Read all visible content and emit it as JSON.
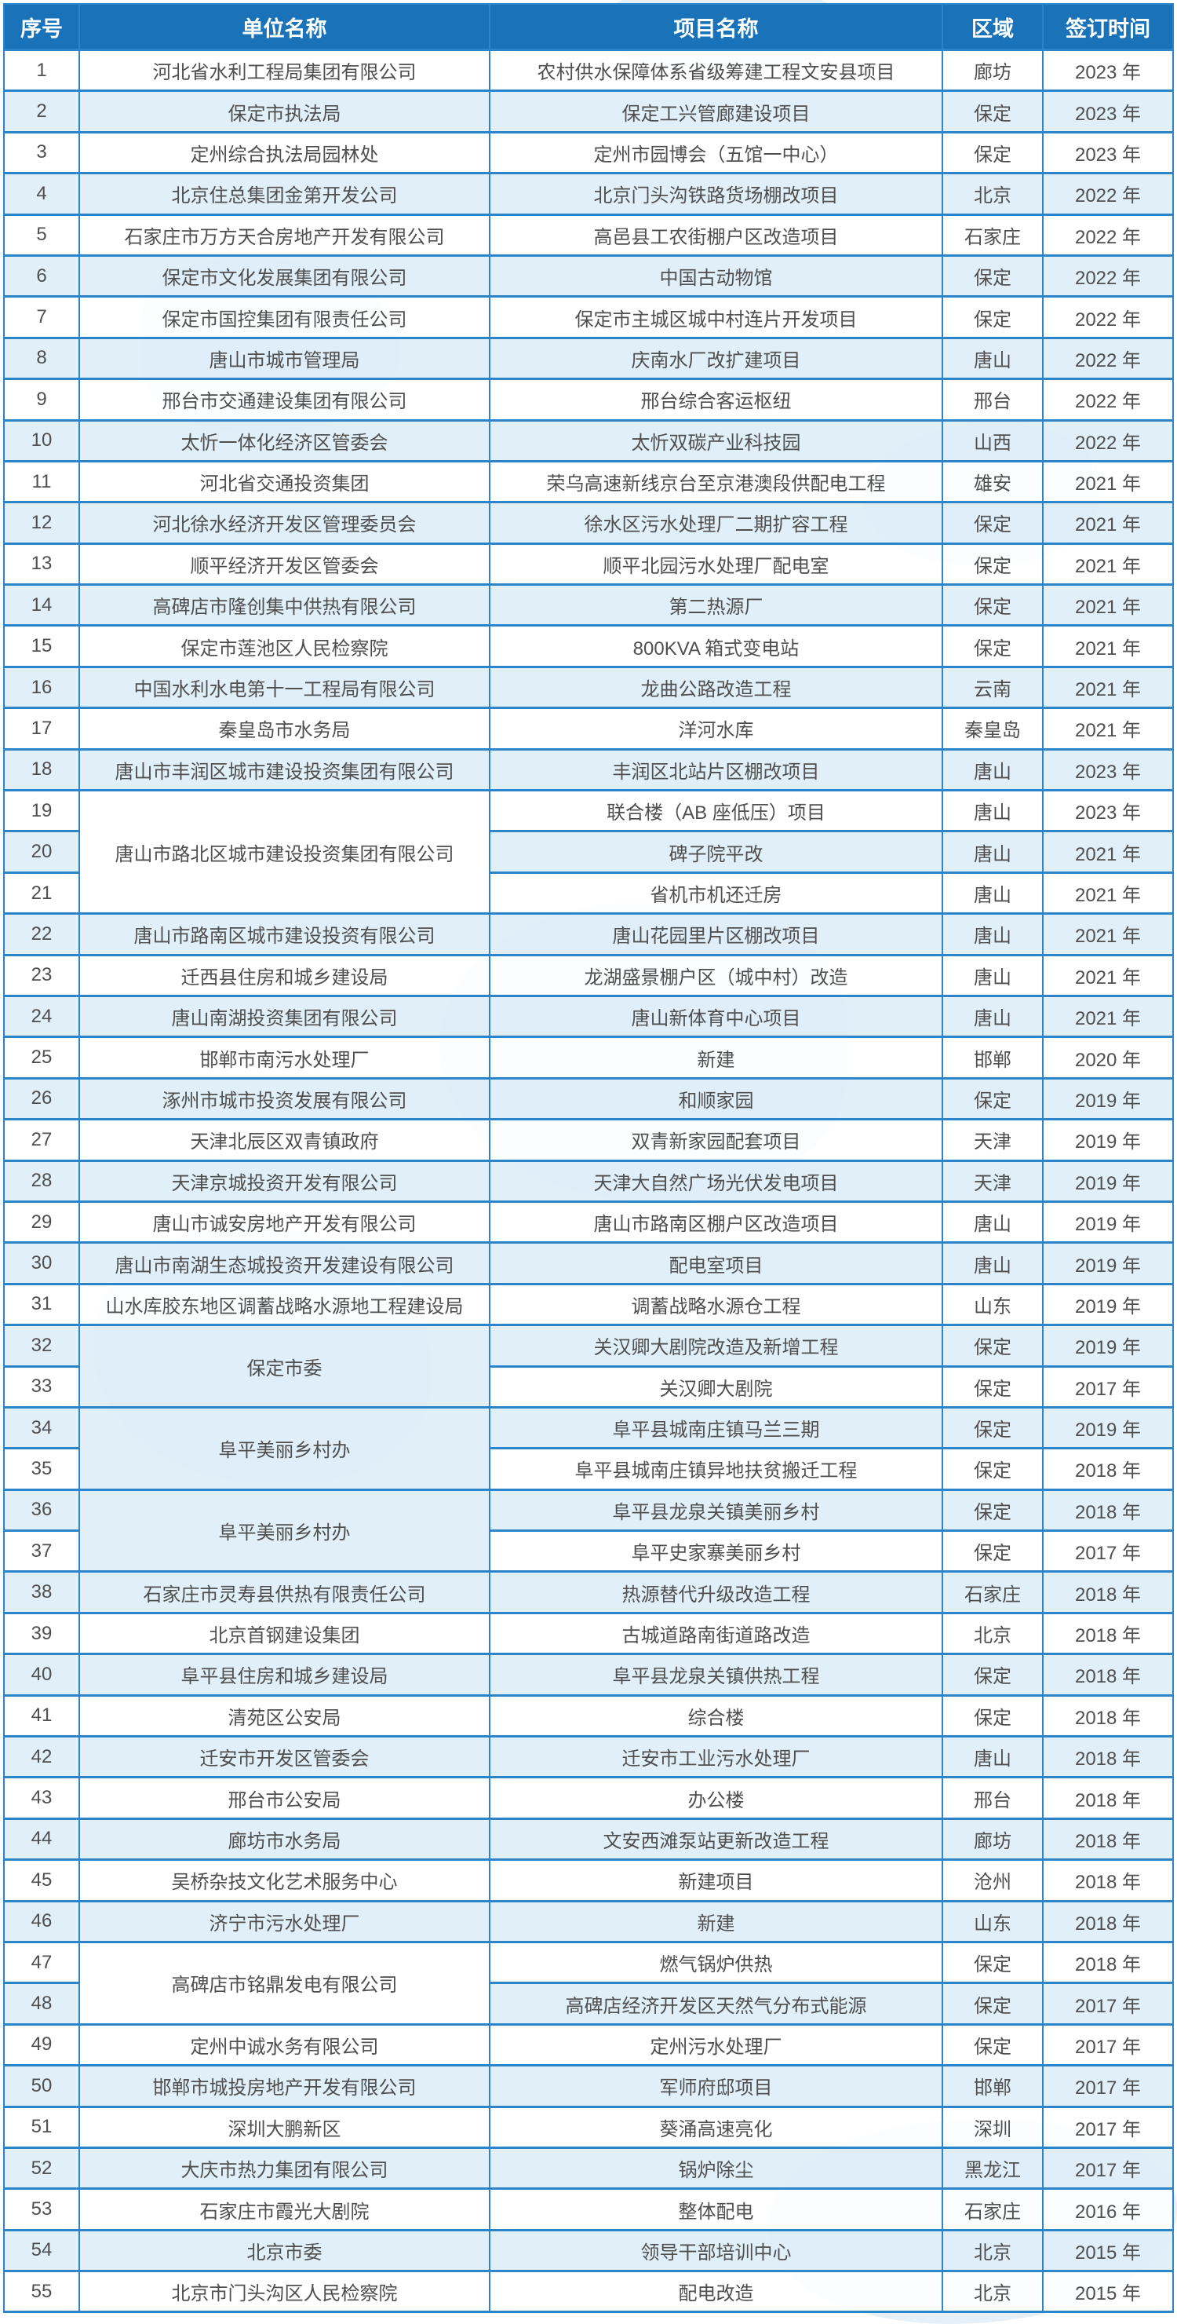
{
  "colors": {
    "header_bg": "#1a73b8",
    "header_text": "#ffffff",
    "border": "#2b85c8",
    "row_alt": "#deeef9",
    "body_text": "#4f4f4f",
    "watermark": "#cfe4f4"
  },
  "table": {
    "columns": [
      {
        "key": "no",
        "label": "序号"
      },
      {
        "key": "unit",
        "label": "单位名称"
      },
      {
        "key": "project",
        "label": "项目名称"
      },
      {
        "key": "region",
        "label": "区域"
      },
      {
        "key": "year",
        "label": "签订时间"
      }
    ],
    "rows": [
      {
        "no": "1",
        "unit": "河北省水利工程局集团有限公司",
        "project": "农村供水保障体系省级筹建工程文安县项目",
        "region": "廊坊",
        "year": "2023 年"
      },
      {
        "no": "2",
        "unit": "保定市执法局",
        "project": "保定工兴管廊建设项目",
        "region": "保定",
        "year": "2023 年"
      },
      {
        "no": "3",
        "unit": "定州综合执法局园林处",
        "project": "定州市园博会（五馆一中心）",
        "region": "保定",
        "year": "2023 年"
      },
      {
        "no": "4",
        "unit": "北京住总集团金第开发公司",
        "project": "北京门头沟铁路货场棚改项目",
        "region": "北京",
        "year": "2022 年"
      },
      {
        "no": "5",
        "unit": "石家庄市万方天合房地产开发有限公司",
        "project": "高邑县工农街棚户区改造项目",
        "region": "石家庄",
        "year": "2022 年"
      },
      {
        "no": "6",
        "unit": "保定市文化发展集团有限公司",
        "project": "中国古动物馆",
        "region": "保定",
        "year": "2022 年"
      },
      {
        "no": "7",
        "unit": "保定市国控集团有限责任公司",
        "project": "保定市主城区城中村连片开发项目",
        "region": "保定",
        "year": "2022 年"
      },
      {
        "no": "8",
        "unit": "唐山市城市管理局",
        "project": "庆南水厂改扩建项目",
        "region": "唐山",
        "year": "2022 年"
      },
      {
        "no": "9",
        "unit": "邢台市交通建设集团有限公司",
        "project": "邢台综合客运枢纽",
        "region": "邢台",
        "year": "2022 年"
      },
      {
        "no": "10",
        "unit": "太忻一体化经济区管委会",
        "project": "太忻双碳产业科技园",
        "region": "山西",
        "year": "2022 年"
      },
      {
        "no": "11",
        "unit": "河北省交通投资集团",
        "project": "荣乌高速新线京台至京港澳段供配电工程",
        "region": "雄安",
        "year": "2021 年"
      },
      {
        "no": "12",
        "unit": "河北徐水经济开发区管理委员会",
        "project": "徐水区污水处理厂二期扩容工程",
        "region": "保定",
        "year": "2021 年"
      },
      {
        "no": "13",
        "unit": "顺平经济开发区管委会",
        "project": "顺平北园污水处理厂配电室",
        "region": "保定",
        "year": "2021 年"
      },
      {
        "no": "14",
        "unit": "高碑店市隆创集中供热有限公司",
        "project": "第二热源厂",
        "region": "保定",
        "year": "2021 年"
      },
      {
        "no": "15",
        "unit": "保定市莲池区人民检察院",
        "project": "800KVA 箱式变电站",
        "region": "保定",
        "year": "2021 年"
      },
      {
        "no": "16",
        "unit": "中国水利水电第十一工程局有限公司",
        "project": "龙曲公路改造工程",
        "region": "云南",
        "year": "2021 年"
      },
      {
        "no": "17",
        "unit": "秦皇岛市水务局",
        "project": "洋河水库",
        "region": "秦皇岛",
        "year": "2021 年"
      },
      {
        "no": "18",
        "unit": "唐山市丰润区城市建设投资集团有限公司",
        "project": "丰润区北站片区棚改项目",
        "region": "唐山",
        "year": "2023 年"
      },
      {
        "no": "19",
        "unit": "唐山市路北区城市建设投资集团有限公司",
        "unit_span": 3,
        "project": "联合楼（AB 座低压）项目",
        "region": "唐山",
        "year": "2023 年"
      },
      {
        "no": "20",
        "project": "碑子院平改",
        "region": "唐山",
        "year": "2021 年"
      },
      {
        "no": "21",
        "project": "省机市机还迁房",
        "region": "唐山",
        "year": "2021 年"
      },
      {
        "no": "22",
        "unit": "唐山市路南区城市建设投资有限公司",
        "project": "唐山花园里片区棚改项目",
        "region": "唐山",
        "year": "2021 年"
      },
      {
        "no": "23",
        "unit": "迁西县住房和城乡建设局",
        "project": "龙湖盛景棚户区（城中村）改造",
        "region": "唐山",
        "year": "2021 年"
      },
      {
        "no": "24",
        "unit": "唐山南湖投资集团有限公司",
        "project": "唐山新体育中心项目",
        "region": "唐山",
        "year": "2021 年"
      },
      {
        "no": "25",
        "unit": "邯郸市南污水处理厂",
        "project": "新建",
        "region": "邯郸",
        "year": "2020 年"
      },
      {
        "no": "26",
        "unit": "涿州市城市投资发展有限公司",
        "project": "和顺家园",
        "region": "保定",
        "year": "2019 年"
      },
      {
        "no": "27",
        "unit": "天津北辰区双青镇政府",
        "project": "双青新家园配套项目",
        "region": "天津",
        "year": "2019 年"
      },
      {
        "no": "28",
        "unit": "天津京城投资开发有限公司",
        "project": "天津大自然广场光伏发电项目",
        "region": "天津",
        "year": "2019 年"
      },
      {
        "no": "29",
        "unit": "唐山市诚安房地产开发有限公司",
        "project": "唐山市路南区棚户区改造项目",
        "region": "唐山",
        "year": "2019 年"
      },
      {
        "no": "30",
        "unit": "唐山市南湖生态城投资开发建设有限公司",
        "project": "配电室项目",
        "region": "唐山",
        "year": "2019 年"
      },
      {
        "no": "31",
        "unit": "山水库胶东地区调蓄战略水源地工程建设局",
        "project": "调蓄战略水源仓工程",
        "region": "山东",
        "year": "2019 年"
      },
      {
        "no": "32",
        "unit": "保定市委",
        "unit_span": 2,
        "project": "关汉卿大剧院改造及新增工程",
        "region": "保定",
        "year": "2019 年"
      },
      {
        "no": "33",
        "project": "关汉卿大剧院",
        "region": "保定",
        "year": "2017 年"
      },
      {
        "no": "34",
        "unit": "阜平美丽乡村办",
        "unit_span": 2,
        "project": "阜平县城南庄镇马兰三期",
        "region": "保定",
        "year": "2019 年"
      },
      {
        "no": "35",
        "project": "阜平县城南庄镇异地扶贫搬迁工程",
        "region": "保定",
        "year": "2018 年"
      },
      {
        "no": "36",
        "unit": "阜平美丽乡村办",
        "unit_span": 2,
        "project": "阜平县龙泉关镇美丽乡村",
        "region": "保定",
        "year": "2018 年"
      },
      {
        "no": "37",
        "project": "阜平史家寨美丽乡村",
        "region": "保定",
        "year": "2017 年"
      },
      {
        "no": "38",
        "unit": "石家庄市灵寿县供热有限责任公司",
        "project": "热源替代升级改造工程",
        "region": "石家庄",
        "year": "2018 年"
      },
      {
        "no": "39",
        "unit": "北京首钢建设集团",
        "project": "古城道路南街道路改造",
        "region": "北京",
        "year": "2018 年"
      },
      {
        "no": "40",
        "unit": "阜平县住房和城乡建设局",
        "project": "阜平县龙泉关镇供热工程",
        "region": "保定",
        "year": "2018 年"
      },
      {
        "no": "41",
        "unit": "清苑区公安局",
        "project": "综合楼",
        "region": "保定",
        "year": "2018 年"
      },
      {
        "no": "42",
        "unit": "迁安市开发区管委会",
        "project": "迁安市工业污水处理厂",
        "region": "唐山",
        "year": "2018 年"
      },
      {
        "no": "43",
        "unit": "邢台市公安局",
        "project": "办公楼",
        "region": "邢台",
        "year": "2018 年"
      },
      {
        "no": "44",
        "unit": "廊坊市水务局",
        "project": "文安西滩泵站更新改造工程",
        "region": "廊坊",
        "year": "2018 年"
      },
      {
        "no": "45",
        "unit": "吴桥杂技文化艺术服务中心",
        "project": "新建项目",
        "region": "沧州",
        "year": "2018 年"
      },
      {
        "no": "46",
        "unit": "济宁市污水处理厂",
        "project": "新建",
        "region": "山东",
        "year": "2018 年"
      },
      {
        "no": "47",
        "unit": "高碑店市铭鼎发电有限公司",
        "unit_span": 2,
        "project": "燃气锅炉供热",
        "region": "保定",
        "year": "2018 年"
      },
      {
        "no": "48",
        "project": "高碑店经济开发区天然气分布式能源",
        "region": "保定",
        "year": "2017 年"
      },
      {
        "no": "49",
        "unit": "定州中诚水务有限公司",
        "project": "定州污水处理厂",
        "region": "保定",
        "year": "2017 年"
      },
      {
        "no": "50",
        "unit": "邯郸市城投房地产开发有限公司",
        "project": "军师府邸项目",
        "region": "邯郸",
        "year": "2017 年"
      },
      {
        "no": "51",
        "unit": "深圳大鹏新区",
        "project": "葵涌高速亮化",
        "region": "深圳",
        "year": "2017 年"
      },
      {
        "no": "52",
        "unit": "大庆市热力集团有限公司",
        "project": "锅炉除尘",
        "region": "黑龙江",
        "year": "2017 年"
      },
      {
        "no": "53",
        "unit": "石家庄市霞光大剧院",
        "project": "整体配电",
        "region": "石家庄",
        "year": "2016 年"
      },
      {
        "no": "54",
        "unit": "北京市委",
        "project": "领导干部培训中心",
        "region": "北京",
        "year": "2015 年"
      },
      {
        "no": "55",
        "unit": "北京市门头沟区人民检察院",
        "project": "配电改造",
        "region": "北京",
        "year": "2015 年"
      }
    ]
  }
}
